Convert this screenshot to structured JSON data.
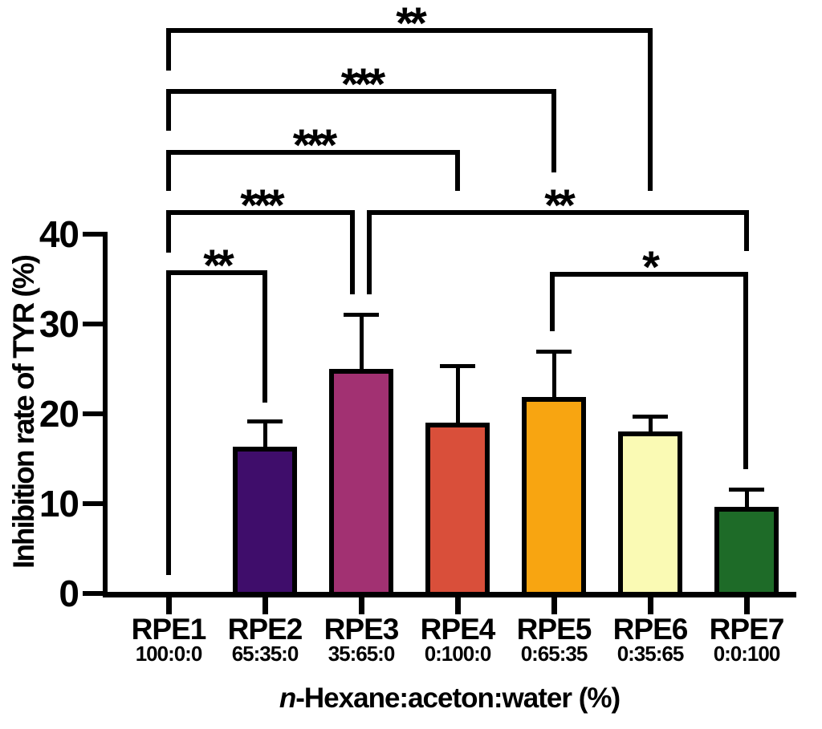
{
  "chart_data": {
    "type": "bar",
    "ylabel": "Inhibition rate of TYR (%)",
    "xlabel_italic": "n",
    "xlabel_rest": "-Hexane:aceton:water (%)",
    "ylim": [
      0,
      40
    ],
    "yticks": [
      0,
      10,
      20,
      30,
      40
    ],
    "ytick_labels": [
      "0",
      "10",
      "20",
      "30",
      "40"
    ],
    "grid": "off",
    "legend": "none",
    "categories": [
      "RPE1",
      "RPE2",
      "RPE3",
      "RPE4",
      "RPE5",
      "RPE6",
      "RPE7"
    ],
    "ratios": [
      "100:0:0",
      "65:35:0",
      "35:65:0",
      "0:100:0",
      "0:65:35",
      "0:35:65",
      "0:0:100"
    ],
    "values": [
      0,
      16.3,
      25.0,
      19.0,
      21.9,
      18.0,
      9.6
    ],
    "errors_plus": [
      0,
      2.9,
      6.1,
      6.4,
      5.1,
      1.7,
      2.0
    ],
    "bar_colors": [
      "none",
      "#3F0D6B",
      "#A23172",
      "#D94F3A",
      "#F8A511",
      "#FAFAB4",
      "#1E6B28"
    ],
    "bar_border_color": "#000000",
    "axis_color": "#000000",
    "significance": [
      {
        "from": "RPE1",
        "to": "RPE6",
        "label": "**"
      },
      {
        "from": "RPE1",
        "to": "RPE5",
        "label": "***"
      },
      {
        "from": "RPE1",
        "to": "RPE4",
        "label": "***"
      },
      {
        "from": "RPE1",
        "to": "RPE3",
        "label": "***"
      },
      {
        "from": "RPE1",
        "to": "RPE2",
        "label": "**"
      },
      {
        "from": "RPE3",
        "to": "RPE7",
        "label": "**"
      },
      {
        "from": "RPE5",
        "to": "RPE7",
        "label": "*"
      }
    ]
  }
}
